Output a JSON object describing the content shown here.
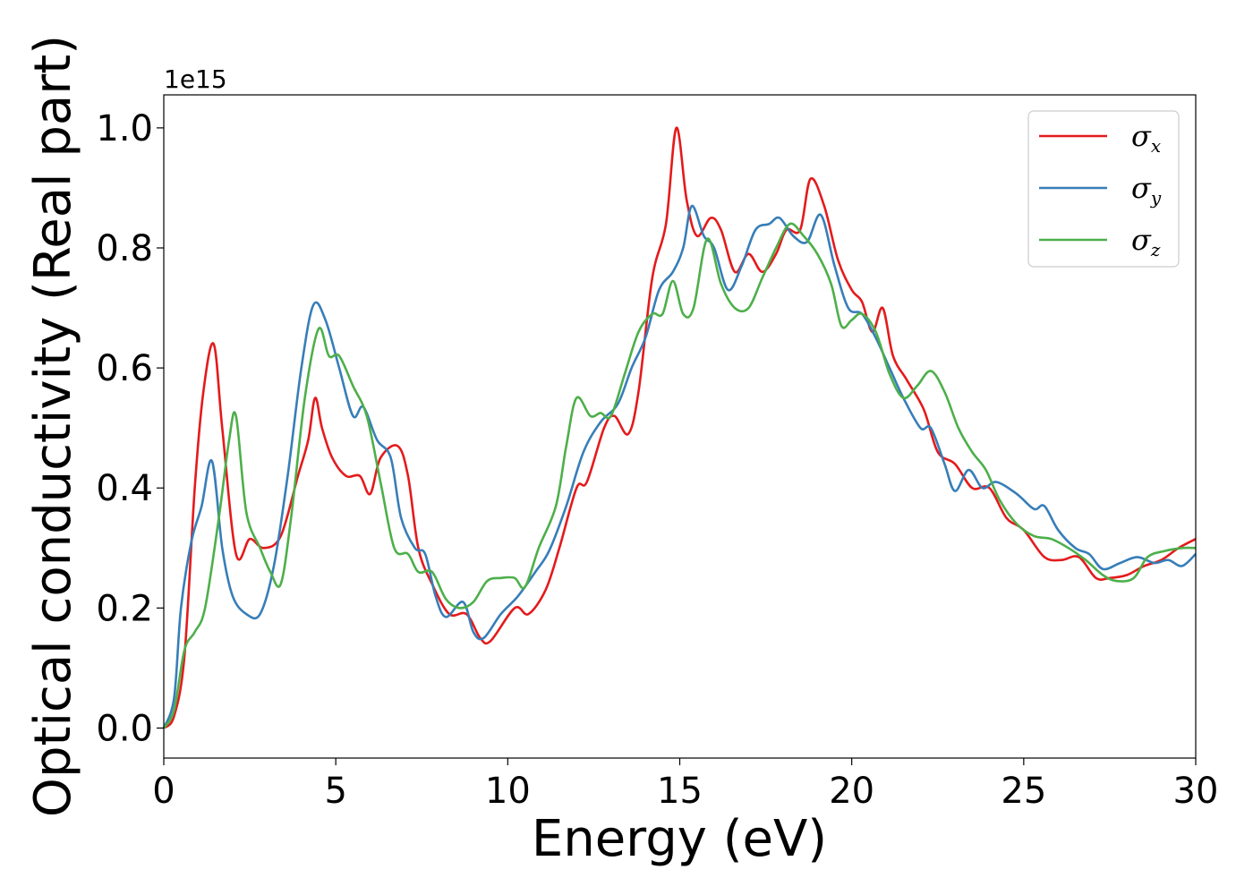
{
  "chart_data": {
    "type": "line",
    "xlabel": "Energy (eV)",
    "ylabel": "Optical conductivity (Real part)",
    "y_offset_label": "1e15",
    "xlim": [
      0,
      30
    ],
    "ylim": [
      -0.05,
      1.055
    ],
    "xticks": [
      0,
      5,
      10,
      15,
      20,
      25,
      30
    ],
    "xtick_labels": [
      "0",
      "5",
      "10",
      "15",
      "20",
      "25",
      "30"
    ],
    "yticks": [
      0.0,
      0.2,
      0.4,
      0.6,
      0.8,
      1.0
    ],
    "ytick_labels": [
      "0.0",
      "0.2",
      "0.4",
      "0.6",
      "0.8",
      "1.0"
    ],
    "grid": false,
    "legend_position": "top-right",
    "series": [
      {
        "name": "σx",
        "symbol": "σ",
        "subscript": "x",
        "color": "#e41a1c",
        "points": [
          [
            0,
            0
          ],
          [
            0.3,
            0.02
          ],
          [
            0.6,
            0.12
          ],
          [
            0.9,
            0.4
          ],
          [
            1.15,
            0.56
          ],
          [
            1.45,
            0.64
          ],
          [
            1.7,
            0.5
          ],
          [
            2.1,
            0.29
          ],
          [
            2.5,
            0.315
          ],
          [
            2.9,
            0.3
          ],
          [
            3.4,
            0.32
          ],
          [
            3.9,
            0.42
          ],
          [
            4.2,
            0.48
          ],
          [
            4.4,
            0.55
          ],
          [
            4.6,
            0.5
          ],
          [
            4.9,
            0.45
          ],
          [
            5.3,
            0.42
          ],
          [
            5.7,
            0.42
          ],
          [
            6.0,
            0.39
          ],
          [
            6.3,
            0.45
          ],
          [
            6.8,
            0.47
          ],
          [
            7.1,
            0.42
          ],
          [
            7.4,
            0.3
          ],
          [
            7.8,
            0.24
          ],
          [
            8.3,
            0.19
          ],
          [
            8.8,
            0.19
          ],
          [
            9.2,
            0.15
          ],
          [
            9.5,
            0.145
          ],
          [
            10.2,
            0.2
          ],
          [
            10.6,
            0.19
          ],
          [
            11.1,
            0.23
          ],
          [
            11.5,
            0.3
          ],
          [
            12.0,
            0.4
          ],
          [
            12.3,
            0.41
          ],
          [
            12.8,
            0.5
          ],
          [
            13.1,
            0.52
          ],
          [
            13.5,
            0.49
          ],
          [
            13.8,
            0.56
          ],
          [
            14.2,
            0.75
          ],
          [
            14.6,
            0.84
          ],
          [
            14.9,
            1.0
          ],
          [
            15.2,
            0.88
          ],
          [
            15.5,
            0.82
          ],
          [
            15.9,
            0.85
          ],
          [
            16.2,
            0.83
          ],
          [
            16.6,
            0.76
          ],
          [
            17.0,
            0.79
          ],
          [
            17.4,
            0.76
          ],
          [
            17.8,
            0.79
          ],
          [
            18.1,
            0.83
          ],
          [
            18.5,
            0.83
          ],
          [
            18.8,
            0.915
          ],
          [
            19.2,
            0.87
          ],
          [
            19.6,
            0.78
          ],
          [
            20.0,
            0.73
          ],
          [
            20.3,
            0.71
          ],
          [
            20.6,
            0.66
          ],
          [
            20.9,
            0.7
          ],
          [
            21.2,
            0.62
          ],
          [
            21.6,
            0.58
          ],
          [
            22.1,
            0.53
          ],
          [
            22.5,
            0.46
          ],
          [
            23.0,
            0.44
          ],
          [
            23.5,
            0.4
          ],
          [
            24.0,
            0.4
          ],
          [
            24.5,
            0.35
          ],
          [
            25.0,
            0.33
          ],
          [
            25.6,
            0.285
          ],
          [
            26.1,
            0.28
          ],
          [
            26.6,
            0.285
          ],
          [
            27.1,
            0.25
          ],
          [
            27.5,
            0.25
          ],
          [
            28.0,
            0.255
          ],
          [
            28.5,
            0.27
          ],
          [
            29.0,
            0.28
          ],
          [
            29.5,
            0.3
          ],
          [
            30.0,
            0.315
          ]
        ]
      },
      {
        "name": "σy",
        "symbol": "σ",
        "subscript": "y",
        "color": "#377eb8",
        "points": [
          [
            0,
            0
          ],
          [
            0.3,
            0.05
          ],
          [
            0.5,
            0.2
          ],
          [
            0.8,
            0.31
          ],
          [
            1.1,
            0.37
          ],
          [
            1.4,
            0.445
          ],
          [
            1.7,
            0.3
          ],
          [
            2.0,
            0.22
          ],
          [
            2.4,
            0.19
          ],
          [
            2.8,
            0.19
          ],
          [
            3.2,
            0.27
          ],
          [
            3.6,
            0.42
          ],
          [
            4.0,
            0.6
          ],
          [
            4.35,
            0.705
          ],
          [
            4.7,
            0.68
          ],
          [
            5.1,
            0.6
          ],
          [
            5.5,
            0.52
          ],
          [
            5.8,
            0.535
          ],
          [
            6.2,
            0.48
          ],
          [
            6.6,
            0.45
          ],
          [
            6.9,
            0.35
          ],
          [
            7.3,
            0.3
          ],
          [
            7.6,
            0.29
          ],
          [
            7.9,
            0.22
          ],
          [
            8.2,
            0.185
          ],
          [
            8.7,
            0.21
          ],
          [
            9.0,
            0.16
          ],
          [
            9.3,
            0.15
          ],
          [
            9.8,
            0.19
          ],
          [
            10.3,
            0.22
          ],
          [
            10.8,
            0.26
          ],
          [
            11.2,
            0.295
          ],
          [
            11.7,
            0.37
          ],
          [
            12.2,
            0.46
          ],
          [
            12.7,
            0.51
          ],
          [
            13.2,
            0.54
          ],
          [
            13.6,
            0.6
          ],
          [
            14.0,
            0.65
          ],
          [
            14.4,
            0.73
          ],
          [
            14.8,
            0.76
          ],
          [
            15.1,
            0.8
          ],
          [
            15.35,
            0.87
          ],
          [
            15.7,
            0.82
          ],
          [
            16.0,
            0.8
          ],
          [
            16.4,
            0.73
          ],
          [
            16.8,
            0.77
          ],
          [
            17.2,
            0.83
          ],
          [
            17.6,
            0.84
          ],
          [
            17.9,
            0.85
          ],
          [
            18.3,
            0.82
          ],
          [
            18.7,
            0.81
          ],
          [
            19.1,
            0.855
          ],
          [
            19.5,
            0.77
          ],
          [
            19.9,
            0.7
          ],
          [
            20.3,
            0.69
          ],
          [
            20.7,
            0.65
          ],
          [
            21.1,
            0.6
          ],
          [
            21.5,
            0.55
          ],
          [
            22.0,
            0.5
          ],
          [
            22.3,
            0.5
          ],
          [
            22.7,
            0.44
          ],
          [
            23.0,
            0.395
          ],
          [
            23.4,
            0.43
          ],
          [
            23.8,
            0.4
          ],
          [
            24.2,
            0.41
          ],
          [
            24.8,
            0.39
          ],
          [
            25.3,
            0.365
          ],
          [
            25.6,
            0.37
          ],
          [
            26.0,
            0.33
          ],
          [
            26.5,
            0.3
          ],
          [
            26.9,
            0.29
          ],
          [
            27.3,
            0.265
          ],
          [
            27.8,
            0.275
          ],
          [
            28.3,
            0.285
          ],
          [
            28.8,
            0.275
          ],
          [
            29.2,
            0.28
          ],
          [
            29.6,
            0.27
          ],
          [
            30.0,
            0.29
          ]
        ]
      },
      {
        "name": "σz",
        "symbol": "σ",
        "subscript": "z",
        "color": "#4daf4a",
        "points": [
          [
            0,
            0
          ],
          [
            0.3,
            0.03
          ],
          [
            0.6,
            0.13
          ],
          [
            0.9,
            0.16
          ],
          [
            1.2,
            0.2
          ],
          [
            1.6,
            0.35
          ],
          [
            1.9,
            0.48
          ],
          [
            2.1,
            0.52
          ],
          [
            2.4,
            0.36
          ],
          [
            2.8,
            0.3
          ],
          [
            3.1,
            0.26
          ],
          [
            3.4,
            0.24
          ],
          [
            3.7,
            0.35
          ],
          [
            4.1,
            0.55
          ],
          [
            4.5,
            0.665
          ],
          [
            4.8,
            0.62
          ],
          [
            5.1,
            0.62
          ],
          [
            5.5,
            0.57
          ],
          [
            5.9,
            0.52
          ],
          [
            6.3,
            0.41
          ],
          [
            6.7,
            0.3
          ],
          [
            7.1,
            0.29
          ],
          [
            7.4,
            0.26
          ],
          [
            7.8,
            0.26
          ],
          [
            8.2,
            0.215
          ],
          [
            8.6,
            0.2
          ],
          [
            9.0,
            0.21
          ],
          [
            9.4,
            0.245
          ],
          [
            9.8,
            0.25
          ],
          [
            10.2,
            0.25
          ],
          [
            10.5,
            0.235
          ],
          [
            10.9,
            0.3
          ],
          [
            11.4,
            0.37
          ],
          [
            11.7,
            0.47
          ],
          [
            12.0,
            0.55
          ],
          [
            12.4,
            0.52
          ],
          [
            12.7,
            0.525
          ],
          [
            13.0,
            0.52
          ],
          [
            13.4,
            0.59
          ],
          [
            13.8,
            0.66
          ],
          [
            14.2,
            0.69
          ],
          [
            14.5,
            0.69
          ],
          [
            14.8,
            0.745
          ],
          [
            15.1,
            0.69
          ],
          [
            15.4,
            0.7
          ],
          [
            15.8,
            0.815
          ],
          [
            16.2,
            0.74
          ],
          [
            16.6,
            0.7
          ],
          [
            17.0,
            0.7
          ],
          [
            17.4,
            0.75
          ],
          [
            17.8,
            0.8
          ],
          [
            18.2,
            0.84
          ],
          [
            18.6,
            0.82
          ],
          [
            19.0,
            0.79
          ],
          [
            19.4,
            0.74
          ],
          [
            19.7,
            0.67
          ],
          [
            20.0,
            0.68
          ],
          [
            20.3,
            0.69
          ],
          [
            20.7,
            0.66
          ],
          [
            21.1,
            0.59
          ],
          [
            21.5,
            0.55
          ],
          [
            21.9,
            0.57
          ],
          [
            22.3,
            0.595
          ],
          [
            22.7,
            0.56
          ],
          [
            23.1,
            0.5
          ],
          [
            23.5,
            0.46
          ],
          [
            23.9,
            0.43
          ],
          [
            24.3,
            0.38
          ],
          [
            24.8,
            0.34
          ],
          [
            25.3,
            0.32
          ],
          [
            25.8,
            0.315
          ],
          [
            26.3,
            0.3
          ],
          [
            26.8,
            0.28
          ],
          [
            27.3,
            0.255
          ],
          [
            27.7,
            0.245
          ],
          [
            28.2,
            0.25
          ],
          [
            28.6,
            0.285
          ],
          [
            29.1,
            0.295
          ],
          [
            29.6,
            0.3
          ],
          [
            30.0,
            0.3
          ]
        ]
      }
    ]
  }
}
